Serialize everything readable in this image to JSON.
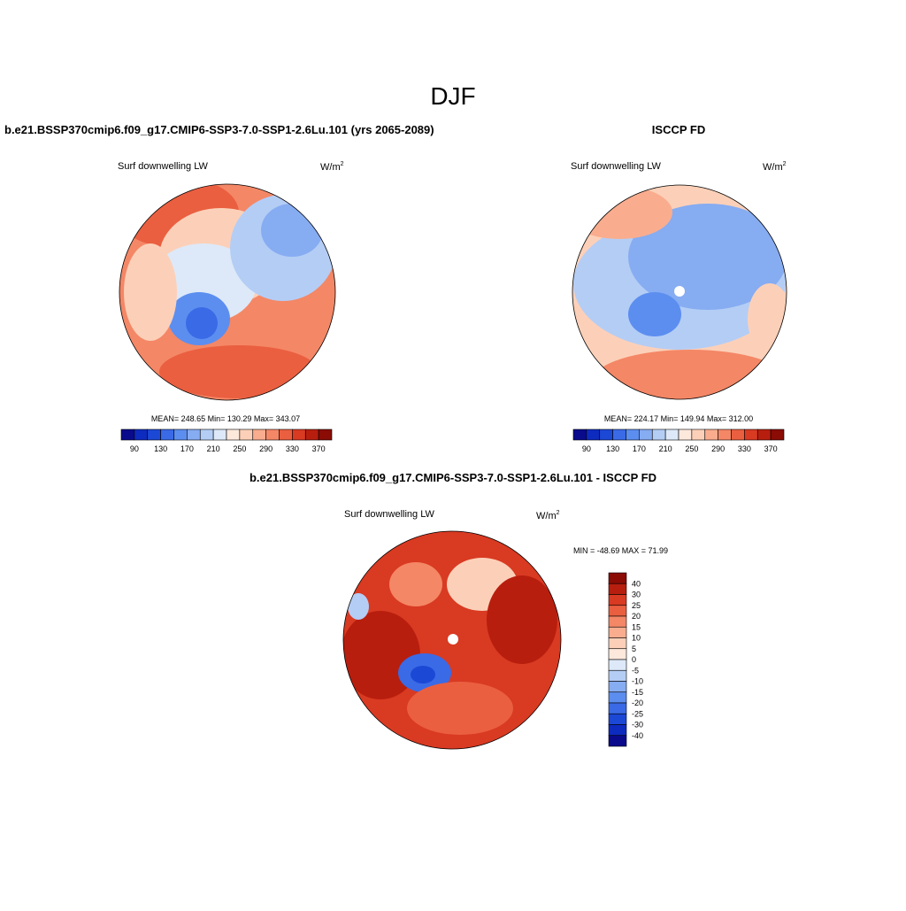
{
  "title": "DJF",
  "panels": [
    {
      "heading": "b.e21.BSSP370cmip6.f09_g17.CMIP6-SSP3-7.0-SSP1-2.6Lu.101 (yrs 2065-2089)",
      "variable": "Surf downwelling LW",
      "units": "W/m",
      "units_sup": "2",
      "stats": "MEAN= 248.65  Min= 130.29  Max= 343.07"
    },
    {
      "heading": "ISCCP FD",
      "variable": "Surf downwelling LW",
      "units": "W/m",
      "units_sup": "2",
      "stats": "MEAN= 224.17  Min= 149.94  Max= 312.00"
    },
    {
      "heading": "b.e21.BSSP370cmip6.f09_g17.CMIP6-SSP3-7.0-SSP1-2.6Lu.101 - ISCCP FD",
      "variable": "Surf downwelling LW",
      "units": "W/m",
      "units_sup": "2",
      "stats": "MIN = -48.69 MAX =  71.99"
    }
  ],
  "colorbar": {
    "labels": [
      "90",
      "130",
      "170",
      "210",
      "250",
      "290",
      "330",
      "370"
    ],
    "colors": [
      "#0a0a8c",
      "#0e2bbf",
      "#1c48d6",
      "#3a6ae6",
      "#5c8ef0",
      "#86acf2",
      "#b4cdf5",
      "#dde9f8",
      "#fde8dc",
      "#fcd0b8",
      "#f9ad8e",
      "#f48766",
      "#ea5f40",
      "#d93a22",
      "#b81e0e",
      "#8a0c05"
    ]
  },
  "diff_colorbar": {
    "labels": [
      "40",
      "30",
      "25",
      "20",
      "15",
      "10",
      "5",
      "0",
      "-5",
      "-10",
      "-15",
      "-20",
      "-25",
      "-30",
      "-40"
    ],
    "colors": [
      "#8a0c05",
      "#b81e0e",
      "#d93a22",
      "#ea5f40",
      "#f48766",
      "#f9ad8e",
      "#fcd0b8",
      "#fde8dc",
      "#dde9f8",
      "#b4cdf5",
      "#86acf2",
      "#5c8ef0",
      "#3a6ae6",
      "#1c48d6",
      "#0e2bbf",
      "#0a0a8c"
    ]
  }
}
